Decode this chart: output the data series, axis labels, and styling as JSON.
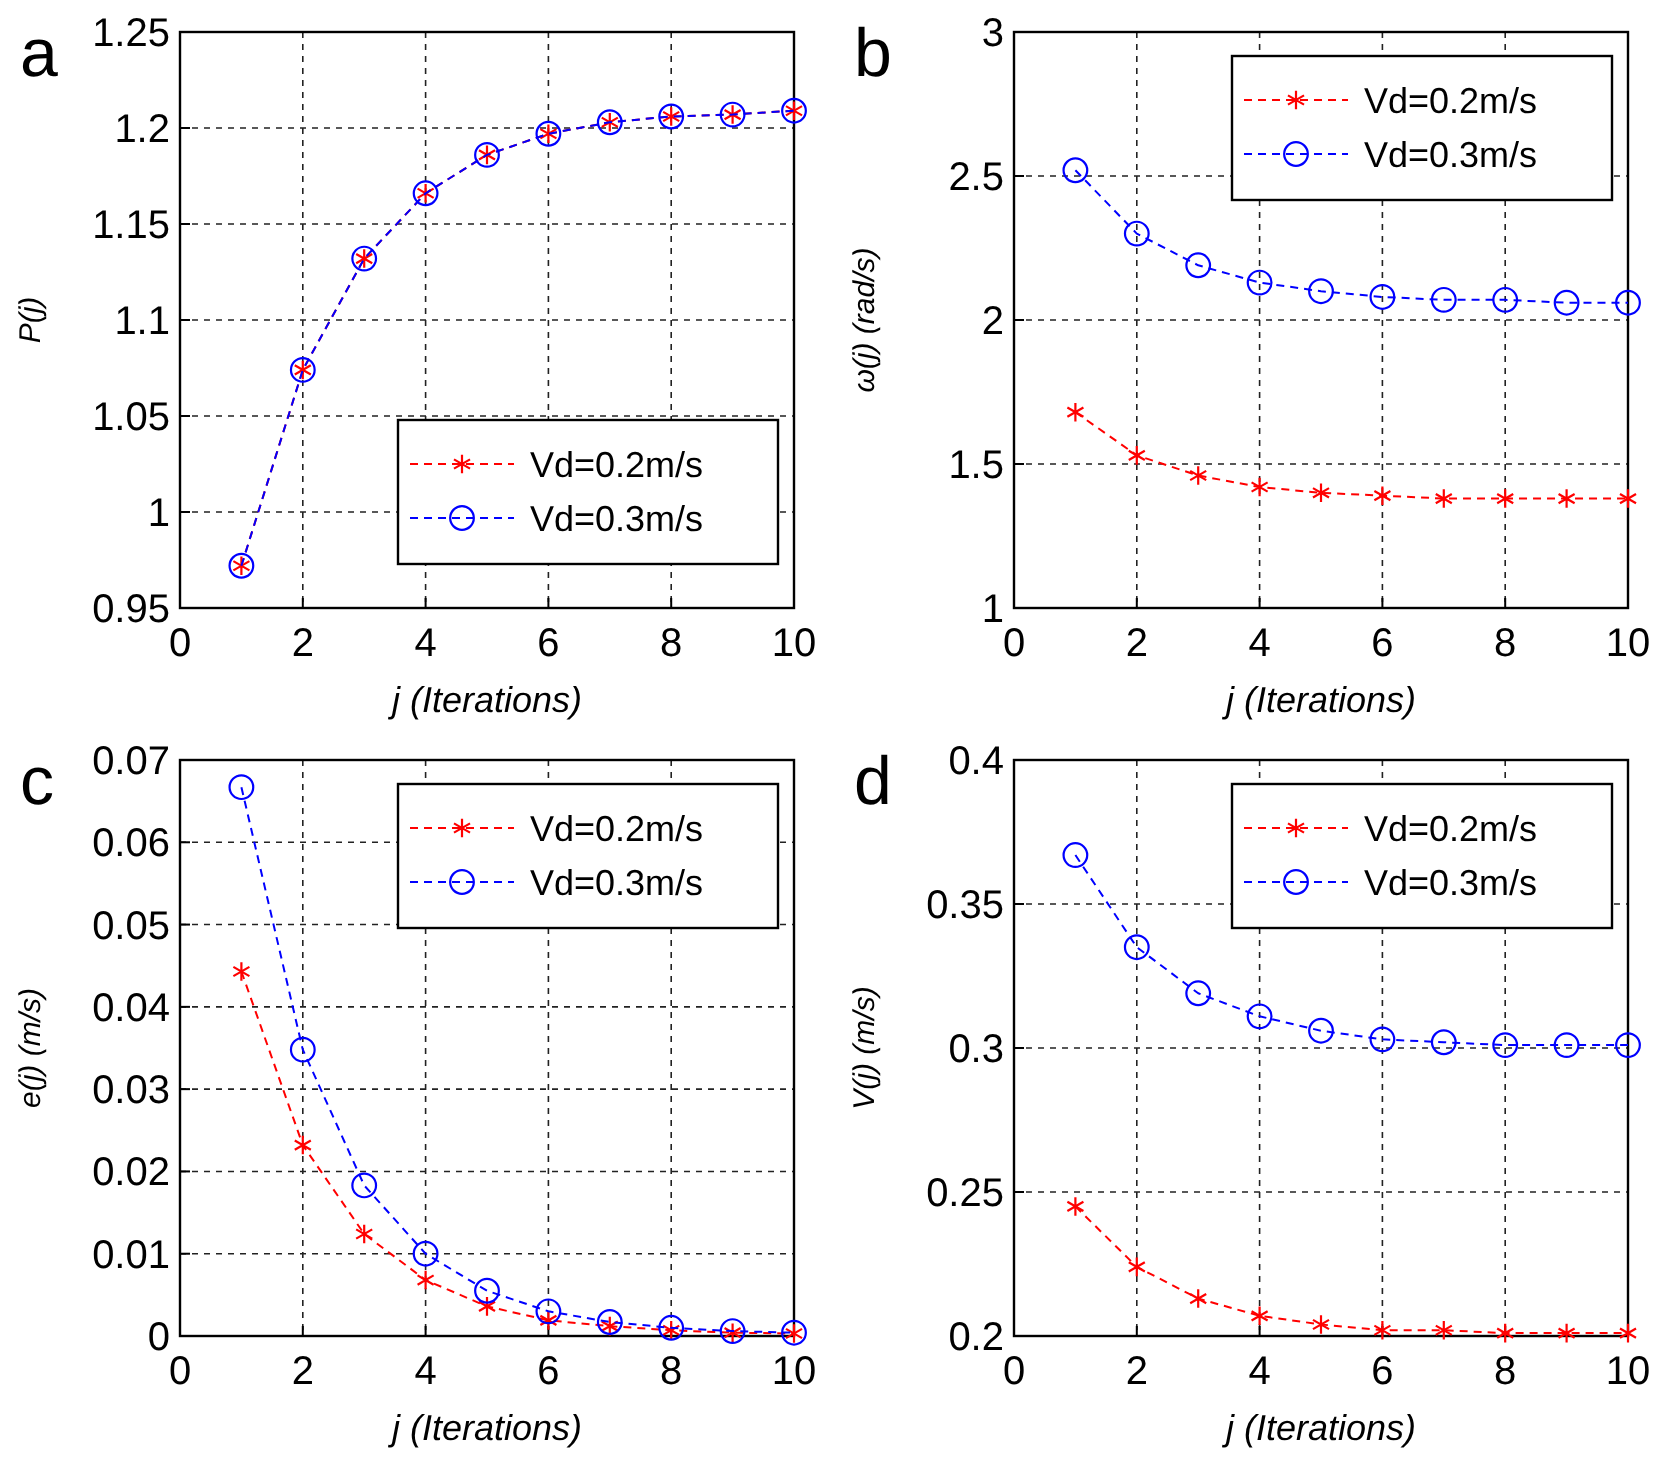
{
  "chart_data": [
    {
      "type": "line",
      "title": "a",
      "xlabel": "j (Iterations)",
      "ylabel": "P(j)",
      "x": [
        1,
        2,
        3,
        4,
        5,
        6,
        7,
        8,
        9,
        10
      ],
      "xlim": [
        0,
        10
      ],
      "xticks": [
        0,
        2,
        4,
        6,
        8,
        10
      ],
      "ylim": [
        0.95,
        1.25
      ],
      "yticks": [
        0.95,
        1,
        1.05,
        1.1,
        1.15,
        1.2,
        1.25
      ],
      "grid": true,
      "legend": "bottom right",
      "line_style": "dashed",
      "series": [
        {
          "name": "Vd=0.2m/s",
          "color": "#ff0000",
          "marker": "cross",
          "values": [
            0.972,
            1.074,
            1.132,
            1.166,
            1.186,
            1.197,
            1.203,
            1.206,
            1.207,
            1.209
          ]
        },
        {
          "name": "Vd=0.3m/s",
          "color": "#0000ff",
          "marker": "circle",
          "values": [
            0.972,
            1.074,
            1.132,
            1.166,
            1.186,
            1.197,
            1.203,
            1.206,
            1.207,
            1.209
          ]
        }
      ]
    },
    {
      "type": "line",
      "title": "b",
      "xlabel": "j (Iterations)",
      "ylabel": "ω(j) (rad/s)",
      "x": [
        1,
        2,
        3,
        4,
        5,
        6,
        7,
        8,
        9,
        10
      ],
      "xlim": [
        0,
        10
      ],
      "xticks": [
        0,
        2,
        4,
        6,
        8,
        10
      ],
      "ylim": [
        1,
        3
      ],
      "yticks": [
        1,
        1.5,
        2,
        2.5,
        3
      ],
      "grid": true,
      "legend": "top right",
      "line_style": "dashed",
      "series": [
        {
          "name": "Vd=0.2m/s",
          "color": "#ff0000",
          "marker": "cross",
          "values": [
            1.68,
            1.53,
            1.46,
            1.42,
            1.4,
            1.39,
            1.38,
            1.38,
            1.38,
            1.38
          ]
        },
        {
          "name": "Vd=0.3m/s",
          "color": "#0000ff",
          "marker": "circle",
          "values": [
            2.52,
            2.3,
            2.19,
            2.13,
            2.1,
            2.08,
            2.07,
            2.07,
            2.06,
            2.06
          ]
        }
      ]
    },
    {
      "type": "line",
      "title": "c",
      "xlabel": "j (Iterations)",
      "ylabel": "e(j) (m/s)",
      "x": [
        1,
        2,
        3,
        4,
        5,
        6,
        7,
        8,
        9,
        10
      ],
      "xlim": [
        0,
        10
      ],
      "xticks": [
        0,
        2,
        4,
        6,
        8,
        10
      ],
      "ylim": [
        0,
        0.07
      ],
      "yticks": [
        0,
        0.01,
        0.02,
        0.03,
        0.04,
        0.05,
        0.06,
        0.07
      ],
      "grid": true,
      "legend": "top right",
      "line_style": "dashed",
      "series": [
        {
          "name": "Vd=0.2m/s",
          "color": "#ff0000",
          "marker": "cross",
          "values": [
            0.0443,
            0.0232,
            0.0124,
            0.0068,
            0.0036,
            0.0019,
            0.0012,
            0.0007,
            0.0004,
            0.0003
          ]
        },
        {
          "name": "Vd=0.3m/s",
          "color": "#0000ff",
          "marker": "circle",
          "values": [
            0.0667,
            0.0348,
            0.0183,
            0.01,
            0.0055,
            0.003,
            0.0017,
            0.001,
            0.0006,
            0.0004
          ]
        }
      ]
    },
    {
      "type": "line",
      "title": "d",
      "xlabel": "j (Iterations)",
      "ylabel": "V(j) (m/s)",
      "x": [
        1,
        2,
        3,
        4,
        5,
        6,
        7,
        8,
        9,
        10
      ],
      "xlim": [
        0,
        10
      ],
      "xticks": [
        0,
        2,
        4,
        6,
        8,
        10
      ],
      "ylim": [
        0.2,
        0.4
      ],
      "yticks": [
        0.2,
        0.25,
        0.3,
        0.35,
        0.4
      ],
      "grid": true,
      "legend": "top right",
      "line_style": "dashed",
      "series": [
        {
          "name": "Vd=0.2m/s",
          "color": "#ff0000",
          "marker": "cross",
          "values": [
            0.245,
            0.224,
            0.213,
            0.207,
            0.204,
            0.202,
            0.202,
            0.201,
            0.201,
            0.201
          ]
        },
        {
          "name": "Vd=0.3m/s",
          "color": "#0000ff",
          "marker": "circle",
          "values": [
            0.367,
            0.335,
            0.319,
            0.311,
            0.306,
            0.303,
            0.302,
            0.301,
            0.301,
            0.301
          ]
        }
      ]
    }
  ]
}
